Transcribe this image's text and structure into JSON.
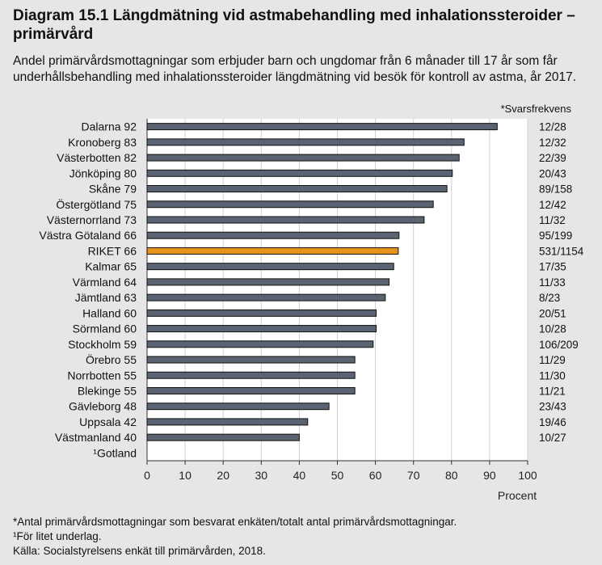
{
  "title": "Diagram 15.1 Längdmätning vid astmabehandling med inhalationssteroider – primärvård",
  "subtitle": "Andel primärvårdsmottagningar som erbjuder barn och ungdomar från 6 månader till 17 år som får underhållsbehandling med inhalationssteroider längdmätning vid besök för kontroll av astma, år 2017.",
  "response_rate_header": "*Svarsfrekvens",
  "chart_data": {
    "type": "bar",
    "orientation": "horizontal",
    "xlabel": "Procent",
    "xlim": [
      0,
      100
    ],
    "xticks": [
      0,
      10,
      20,
      30,
      40,
      50,
      60,
      70,
      80,
      90,
      100
    ],
    "grid": true,
    "categories": [
      "Dalarna",
      "Kronoberg",
      "Västerbotten",
      "Jönköping",
      "Skåne",
      "Östergötland",
      "Västernorrland",
      "Västra Götaland",
      "RIKET",
      "Kalmar",
      "Värmland",
      "Jämtland",
      "Halland",
      "Sörmland",
      "Stockholm",
      "Örebro",
      "Norrbotten",
      "Blekinge",
      "Gävleborg",
      "Uppsala",
      "Västmanland",
      "¹Gotland"
    ],
    "value_labels": [
      "92",
      "83",
      "82",
      "80",
      "79",
      "75",
      "73",
      "66",
      "66",
      "65",
      "64",
      "63",
      "60",
      "60",
      "59",
      "55",
      "55",
      "55",
      "48",
      "42",
      "40",
      ""
    ],
    "values": [
      92,
      83.3,
      82,
      80.2,
      78.8,
      75.2,
      72.8,
      66.2,
      66,
      64.8,
      63.6,
      62.6,
      60.2,
      60.2,
      59.4,
      54.6,
      54.6,
      54.6,
      47.8,
      42.2,
      40,
      null
    ],
    "response_rates": [
      "12/28",
      "12/32",
      "22/39",
      "20/43",
      "89/158",
      "12/42",
      "11/32",
      "95/199",
      "531/1154",
      "17/35",
      "11/33",
      "8/23",
      "20/51",
      "10/28",
      "106/209",
      "11/29",
      "11/30",
      "11/21",
      "23/43",
      "19/46",
      "10/27",
      ""
    ],
    "highlight_category": "RIKET"
  },
  "colors": {
    "bar": "#5a6371",
    "highlight": "#e8941a",
    "bar_outline": "#111111",
    "plot_bg": "#ffffff",
    "grid": "#d0d0d0"
  },
  "footnotes": [
    "*Antal primärvårdsmottagningar som besvarat enkäten/totalt antal primärvårdsmottagningar.",
    "¹För litet underlag.",
    "Källa:  Socialstyrelsens enkät till primärvården, 2018."
  ]
}
